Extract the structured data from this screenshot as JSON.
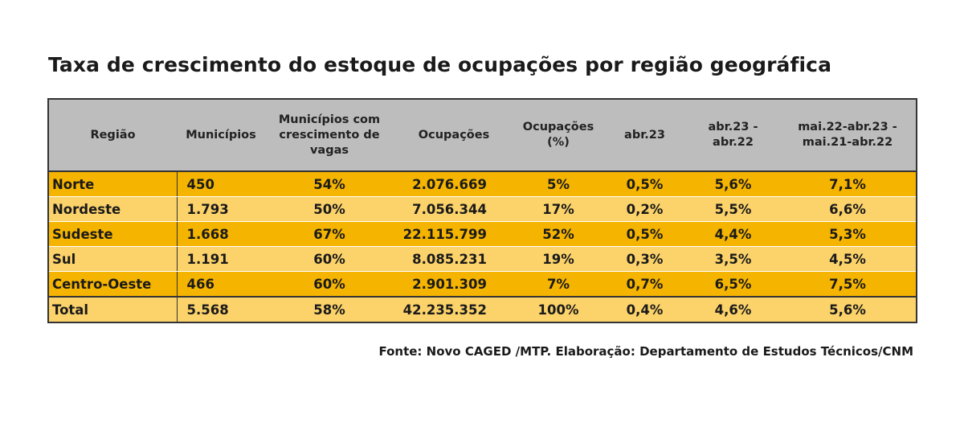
{
  "title": "Taxa de crescimento do estoque de ocupações por região geográfica",
  "chart_data": {
    "type": "table",
    "title": "Taxa de crescimento do estoque de ocupações por região geográfica",
    "columns": [
      "Região",
      "Municípios",
      "Municípios com crescimento de vagas",
      "Ocupações",
      "Ocupações (%)",
      "abr.23",
      "abr.23 - abr.22",
      "mai.22-abr.23 - mai.21-abr.22"
    ],
    "rows": [
      [
        "Norte",
        "450",
        "54%",
        "2.076.669",
        "5%",
        "0,5%",
        "5,6%",
        "7,1%"
      ],
      [
        "Nordeste",
        "1.793",
        "50%",
        "7.056.344",
        "17%",
        "0,2%",
        "5,5%",
        "6,6%"
      ],
      [
        "Sudeste",
        "1.668",
        "67%",
        "22.115.799",
        "52%",
        "0,5%",
        "4,4%",
        "5,3%"
      ],
      [
        "Sul",
        "1.191",
        "60%",
        "8.085.231",
        "19%",
        "0,3%",
        "3,5%",
        "4,5%"
      ],
      [
        "Centro-Oeste",
        "466",
        "60%",
        "2.901.309",
        "7%",
        "0,7%",
        "6,5%",
        "7,5%"
      ],
      [
        "Total",
        "5.568",
        "58%",
        "42.235.352",
        "100%",
        "0,4%",
        "4,6%",
        "5,6%"
      ]
    ],
    "source": "Fonte: Novo CAGED  /MTP. Elaboração: Departamento de Estudos Técnicos/CNM"
  },
  "colors": {
    "header_bg": "#bdbdbd",
    "row_dark": "#f5b400",
    "row_light": "#fcd36a",
    "border": "#333333"
  }
}
